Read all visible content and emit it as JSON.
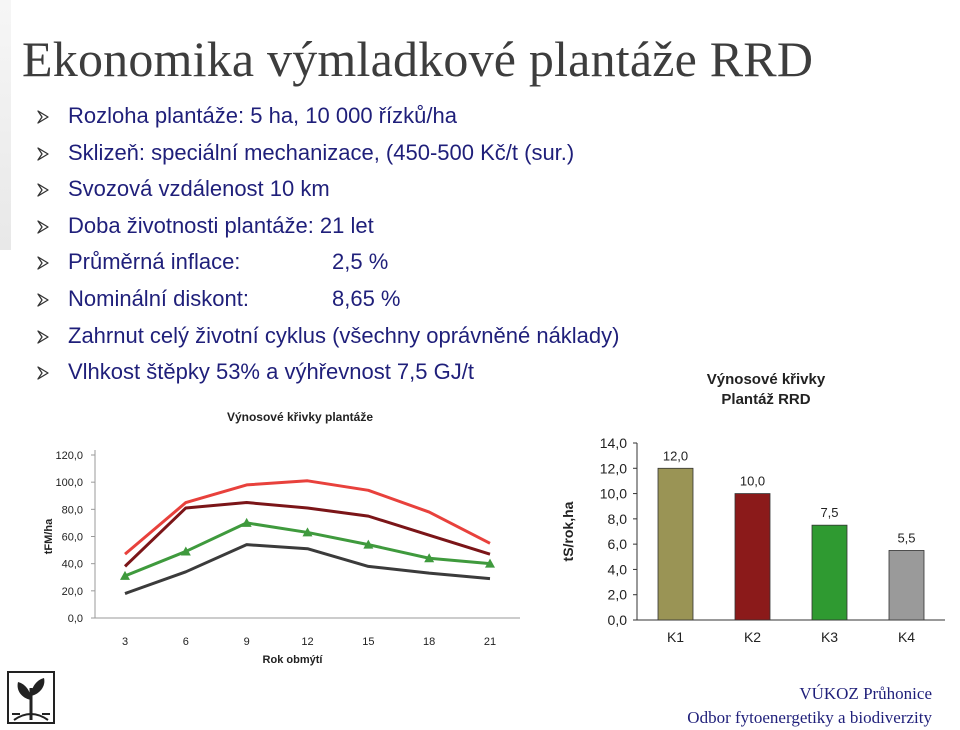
{
  "title": "Ekonomika výmladkové plantáže RRD",
  "bullets": [
    {
      "text": "Rozloha plantáže: 5 ha, 10 000 řízků/ha",
      "value": ""
    },
    {
      "text": "Sklizeň: speciální mechanizace, (450-500 Kč/t (sur.)",
      "value": ""
    },
    {
      "text": "Svozová vzdálenost 10 km",
      "value": ""
    },
    {
      "text": "Doba životnosti plantáže: 21 let",
      "value": ""
    },
    {
      "text": "Průměrná inflace:",
      "value": "2,5 %"
    },
    {
      "text": "Nominální diskont:",
      "value": "8,65 %"
    },
    {
      "text": "Zahrnut celý životní cyklus (všechny oprávněné náklady)",
      "value": ""
    },
    {
      "text": "Vlhkost štěpky 53% a výhřevnost 7,5 GJ/t",
      "value": ""
    }
  ],
  "chart_data": [
    {
      "type": "line",
      "title": "Výnosové křivky plantáže",
      "xlabel": "Rok obmýtí",
      "ylabel": "tFM/ha",
      "x": [
        3,
        6,
        9,
        12,
        15,
        18,
        21
      ],
      "x_tick_labels": [
        "3",
        "6",
        "9",
        "12",
        "15",
        "18",
        "21"
      ],
      "y_tick_labels": [
        "0,0",
        "20,0",
        "40,0",
        "60,0",
        "80,0",
        "100,0",
        "120,0"
      ],
      "ylim": [
        0,
        120
      ],
      "grid": false,
      "series": [
        {
          "color": "#e8413c",
          "values": [
            47,
            85,
            98,
            101,
            94,
            78,
            55
          ]
        },
        {
          "color": "#7b1518",
          "values": [
            38,
            81,
            85,
            81,
            75,
            61,
            47
          ]
        },
        {
          "color": "#3f9a3d",
          "marker": "triangle",
          "values": [
            31,
            49,
            70,
            63,
            54,
            44,
            40
          ]
        },
        {
          "color": "#3b3b3b",
          "values": [
            18,
            34,
            54,
            51,
            38,
            33,
            29
          ]
        }
      ]
    },
    {
      "type": "bar",
      "title": "Výnosové křivky\nPlantáž RRD",
      "ylabel": "tS/rok,ha",
      "categories": [
        "K1",
        "K2",
        "K3",
        "K4"
      ],
      "values": [
        12.0,
        10.0,
        7.5,
        5.5
      ],
      "value_labels": [
        "12,0",
        "10,0",
        "7,5",
        "5,5"
      ],
      "colors": [
        "#9a9455",
        "#8b1a1a",
        "#2f9a31",
        "#9a9a9a"
      ],
      "y_tick_labels": [
        "0,0",
        "2,0",
        "4,0",
        "6,0",
        "8,0",
        "10,0",
        "12,0",
        "14,0"
      ],
      "ylim": [
        0,
        14
      ],
      "grid": false
    }
  ],
  "footer": {
    "line1": "VÚKOZ Průhonice",
    "line2": "Odbor fytoenergetiky a biodiverzity"
  }
}
